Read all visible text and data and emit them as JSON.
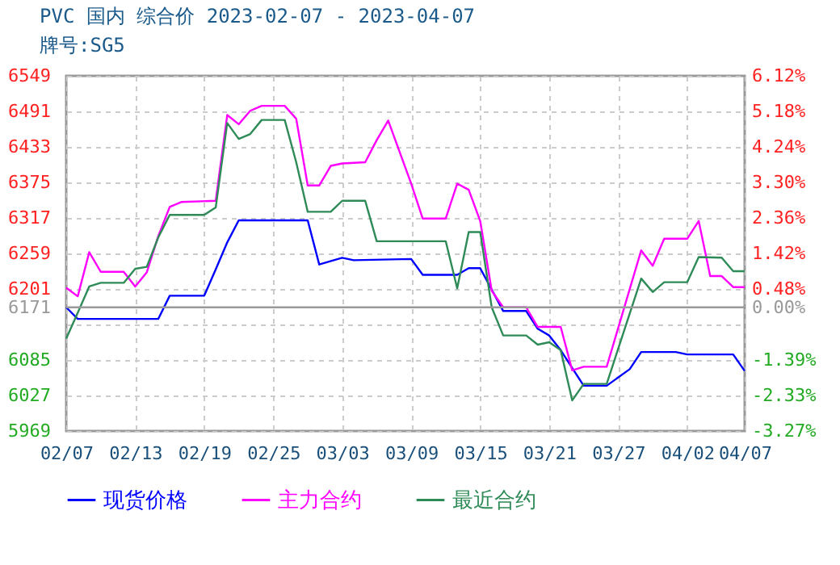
{
  "chart_data": {
    "type": "line",
    "title": "PVC 国内 综合价 2023-02-07 - 2023-04-07",
    "subtitle": "牌号:SG5",
    "series": [
      {
        "name": "现货价格",
        "color": "#0000ff",
        "x": [
          "2023-02-07",
          "2023-02-08",
          "2023-02-15",
          "2023-02-16",
          "2023-02-19",
          "2023-02-20",
          "2023-02-21",
          "2023-02-22",
          "2023-02-28",
          "2023-03-01",
          "2023-03-03",
          "2023-03-04",
          "2023-03-09",
          "2023-03-10",
          "2023-03-13",
          "2023-03-14",
          "2023-03-15",
          "2023-03-17",
          "2023-03-19",
          "2023-03-20",
          "2023-03-21",
          "2023-03-22",
          "2023-03-24",
          "2023-03-26",
          "2023-03-28",
          "2023-03-29",
          "2023-04-01",
          "2023-04-02",
          "2023-04-06",
          "2023-04-07"
        ],
        "values": [
          6171,
          6152,
          6152,
          6190,
          6190,
          6233,
          6277,
          6313,
          6313,
          6241,
          6252,
          6248,
          6250,
          6224,
          6224,
          6235,
          6235,
          6165,
          6165,
          6136,
          6125,
          6101,
          6043,
          6043,
          6070,
          6098,
          6098,
          6094,
          6094,
          6067
        ]
      },
      {
        "name": "主力合约",
        "color": "#ff00ff",
        "x": [
          "2023-02-07",
          "2023-02-08",
          "2023-02-09",
          "2023-02-10",
          "2023-02-12",
          "2023-02-13",
          "2023-02-14",
          "2023-02-15",
          "2023-02-16",
          "2023-02-17",
          "2023-02-20",
          "2023-02-21",
          "2023-02-22",
          "2023-02-23",
          "2023-02-24",
          "2023-02-26",
          "2023-02-27",
          "2023-02-28",
          "2023-03-01",
          "2023-03-02",
          "2023-03-03",
          "2023-03-05",
          "2023-03-06",
          "2023-03-07",
          "2023-03-09",
          "2023-03-10",
          "2023-03-12",
          "2023-03-13",
          "2023-03-14",
          "2023-03-15",
          "2023-03-16",
          "2023-03-17",
          "2023-03-19",
          "2023-03-20",
          "2023-03-22",
          "2023-03-23",
          "2023-03-24",
          "2023-03-26",
          "2023-03-29",
          "2023-03-30",
          "2023-03-31",
          "2023-04-02",
          "2023-04-03",
          "2023-04-04",
          "2023-04-05",
          "2023-04-06",
          "2023-04-07"
        ],
        "values": [
          6203,
          6189,
          6261,
          6229,
          6229,
          6205,
          6228,
          6287,
          6335,
          6343,
          6345,
          6485,
          6470,
          6492,
          6500,
          6500,
          6479,
          6370,
          6370,
          6402,
          6406,
          6408,
          6444,
          6476,
          6373,
          6316,
          6316,
          6373,
          6363,
          6312,
          6198,
          6171,
          6171,
          6139,
          6139,
          6068,
          6074,
          6074,
          6264,
          6239,
          6283,
          6283,
          6312,
          6222,
          6222,
          6204,
          6204
        ]
      },
      {
        "name": "最近合约",
        "color": "#2e8b57",
        "x": [
          "2023-02-07",
          "2023-02-08",
          "2023-02-09",
          "2023-02-10",
          "2023-02-12",
          "2023-02-13",
          "2023-02-14",
          "2023-02-15",
          "2023-02-16",
          "2023-02-19",
          "2023-02-20",
          "2023-02-21",
          "2023-02-22",
          "2023-02-23",
          "2023-02-24",
          "2023-02-26",
          "2023-02-27",
          "2023-02-28",
          "2023-03-02",
          "2023-03-03",
          "2023-03-05",
          "2023-03-06",
          "2023-03-12",
          "2023-03-13",
          "2023-03-14",
          "2023-03-15",
          "2023-03-16",
          "2023-03-17",
          "2023-03-19",
          "2023-03-20",
          "2023-03-21",
          "2023-03-22",
          "2023-03-23",
          "2023-03-24",
          "2023-03-26",
          "2023-03-29",
          "2023-03-30",
          "2023-03-31",
          "2023-04-02",
          "2023-04-03",
          "2023-04-05",
          "2023-04-06",
          "2023-04-07"
        ],
        "values": [
          6120,
          6162,
          6205,
          6211,
          6211,
          6234,
          6237,
          6285,
          6322,
          6322,
          6334,
          6472,
          6446,
          6454,
          6477,
          6477,
          6408,
          6327,
          6327,
          6345,
          6345,
          6279,
          6279,
          6202,
          6294,
          6294,
          6171,
          6125,
          6125,
          6110,
          6114,
          6101,
          6019,
          6046,
          6046,
          6218,
          6196,
          6212,
          6212,
          6253,
          6252,
          6230,
          6230
        ]
      }
    ],
    "xlim": [
      "2023-02-07",
      "2023-04-07"
    ],
    "xticks": [
      {
        "value": "2023-02-07",
        "label": "02/07"
      },
      {
        "value": "2023-02-13",
        "label": "02/13"
      },
      {
        "value": "2023-02-19",
        "label": "02/19"
      },
      {
        "value": "2023-02-25",
        "label": "02/25"
      },
      {
        "value": "2023-03-03",
        "label": "03/03"
      },
      {
        "value": "2023-03-09",
        "label": "03/09"
      },
      {
        "value": "2023-03-15",
        "label": "03/15"
      },
      {
        "value": "2023-03-21",
        "label": "03/21"
      },
      {
        "value": "2023-03-27",
        "label": "03/27"
      },
      {
        "value": "2023-04-02",
        "label": "04/02"
      },
      {
        "value": "2023-04-07",
        "label": "04/07"
      }
    ],
    "ylim": [
      5969,
      6549
    ],
    "yticks": [
      5969,
      6027,
      6085,
      {
        "value": 6143,
        "label": null
      },
      6171,
      6201,
      6259,
      6317,
      6375,
      6433,
      6491,
      6549
    ],
    "y2lim": [
      -3.27,
      6.12
    ],
    "y2ticks": [
      {
        "value": -3.27,
        "label": "-3.27%"
      },
      {
        "value": -2.33,
        "label": "-2.33%"
      },
      {
        "value": -1.39,
        "label": "-1.39%"
      },
      {
        "value": -0.45,
        "label": null
      },
      {
        "value": 0,
        "label": "0.00%"
      },
      {
        "value": 0.48,
        "label": "0.48%"
      },
      {
        "value": 1.42,
        "label": "1.42%"
      },
      {
        "value": 2.36,
        "label": "2.36%"
      },
      {
        "value": 3.3,
        "label": "3.30%"
      },
      {
        "value": 4.24,
        "label": "4.24%"
      },
      {
        "value": 5.18,
        "label": "5.18%"
      },
      {
        "value": 6.12,
        "label": "6.12%"
      }
    ],
    "ref_lines": [
      {
        "axis": "y",
        "value": 6171,
        "color": "#999999"
      }
    ],
    "grid": true,
    "legend": "bottom left",
    "marker": "none",
    "line_style": "solid"
  }
}
